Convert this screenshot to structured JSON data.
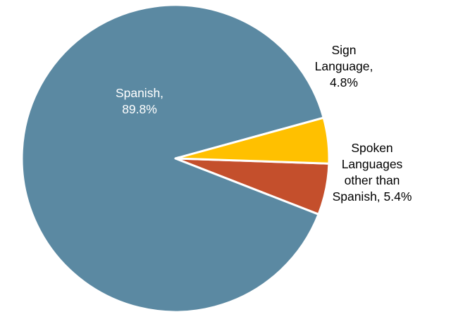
{
  "chart_data": {
    "type": "pie",
    "categories": [
      "Spanish",
      "Sign Language",
      "Spoken Languages other than Spanish"
    ],
    "values": [
      89.8,
      4.8,
      5.4
    ],
    "data_labels": [
      [
        "Spanish,",
        "89.8%"
      ],
      [
        "Sign",
        "Language,",
        "4.8%"
      ],
      [
        "Spoken",
        "Languages",
        "other than",
        "Spanish, 5.4%"
      ]
    ],
    "colors": [
      "#5B89A2",
      "#FFC000",
      "#C44F2C"
    ],
    "label_colors": [
      "#ffffff",
      "#000000",
      "#000000"
    ],
    "slice_border_color": "#ffffff",
    "legend": "none"
  }
}
